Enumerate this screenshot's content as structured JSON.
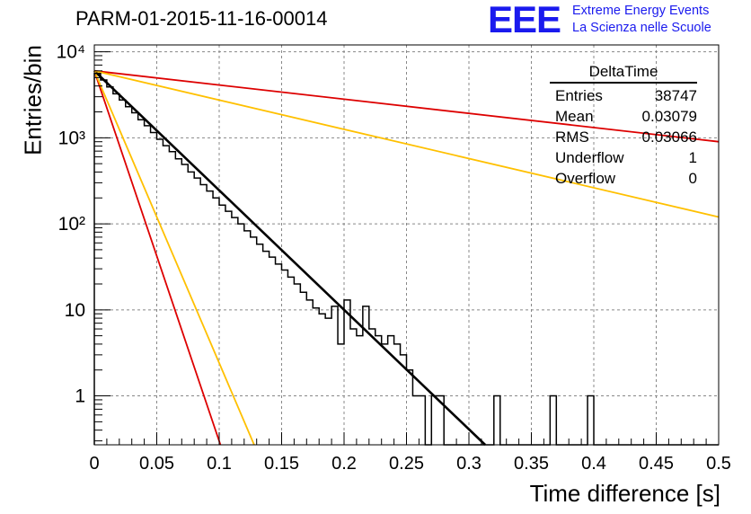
{
  "title": "PARM-01-2015-11-16-00014",
  "logo": {
    "mark": "EEE",
    "line1": "Extreme Energy Events",
    "line2": "La Scienza nelle Scuole",
    "color": "#1a1aee"
  },
  "stats": {
    "title": "DeltaTime",
    "entries_label": "Entries",
    "entries": "38747",
    "mean_label": "Mean",
    "mean": "0.03079",
    "rms_label": "RMS",
    "rms": "0.03066",
    "underflow_label": "Underflow",
    "underflow": "1",
    "overflow_label": "Overflow",
    "overflow": "0"
  },
  "chart_data": {
    "type": "line",
    "xlabel": "Time difference [s]",
    "ylabel": "Entries/bin",
    "xlim": [
      0,
      0.5
    ],
    "ylim": [
      0.27,
      12000
    ],
    "yscale": "log",
    "grid": true,
    "x_ticks": [
      "0",
      "0.05",
      "0.1",
      "0.15",
      "0.2",
      "0.25",
      "0.3",
      "0.35",
      "0.4",
      "0.45",
      "0.5"
    ],
    "y_ticks": [
      {
        "value": 1,
        "label": "1"
      },
      {
        "value": 10,
        "label": "10"
      },
      {
        "value": 100,
        "label": "10²"
      },
      {
        "value": 1000,
        "label": "10³"
      },
      {
        "value": 10000,
        "label": "10⁴"
      }
    ],
    "histogram": {
      "color": "#000000",
      "bin_width": 0.005,
      "values": [
        5600,
        4700,
        3900,
        3250,
        2750,
        2300,
        1950,
        1620,
        1380,
        1150,
        960,
        810,
        690,
        570,
        490,
        400,
        340,
        285,
        240,
        200,
        165,
        140,
        118,
        100,
        83,
        70,
        58,
        48,
        41,
        34,
        29,
        24,
        20,
        16,
        13,
        10.5,
        9,
        8,
        11,
        4,
        13,
        6,
        5,
        11,
        6,
        5,
        4,
        5,
        4,
        3,
        2,
        1,
        1,
        0.2,
        1,
        1,
        0.2,
        0.2,
        0.2,
        0.2,
        0.2,
        0.2,
        0.2,
        0.2,
        1,
        0.2,
        0.2,
        0.2,
        0.2,
        0.2,
        0.2,
        0.2,
        0.2,
        1,
        0.2,
        0.2,
        0.2,
        0.2,
        0.2,
        1,
        0.2,
        0.2,
        0.2,
        0.2,
        0.2,
        0.2,
        0.2,
        0.2,
        0.2,
        0.2,
        0.2,
        0.2,
        0.2,
        0.2,
        0.2,
        0.2,
        0.2,
        0.2,
        0.2,
        0.2
      ]
    },
    "curves": [
      {
        "color": "#000000",
        "points": [
          [
            0,
            6000
          ],
          [
            0.313,
            0.27
          ]
        ]
      },
      {
        "color": "#dd0000",
        "points": [
          [
            0,
            6000
          ],
          [
            0.5,
            900
          ]
        ]
      },
      {
        "color": "#ffc000",
        "points": [
          [
            0,
            6000
          ],
          [
            0.5,
            120
          ]
        ]
      },
      {
        "color": "#dd0000",
        "points": [
          [
            0,
            6000
          ],
          [
            0.101,
            0.27
          ]
        ]
      },
      {
        "color": "#ffc000",
        "points": [
          [
            0,
            6000
          ],
          [
            0.128,
            0.27
          ]
        ]
      }
    ]
  }
}
